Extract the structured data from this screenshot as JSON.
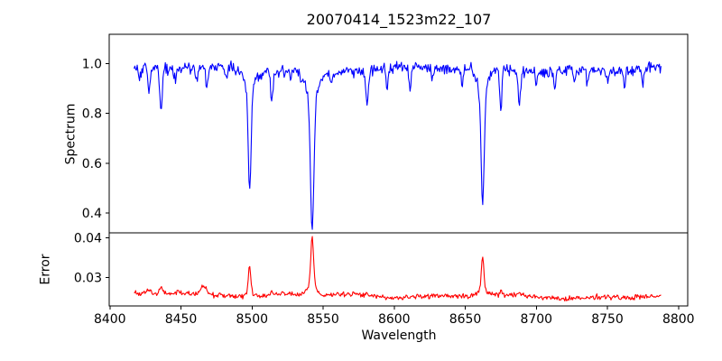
{
  "figure": {
    "title": "20070414_1523m22_107"
  },
  "chart_data": {
    "type": "line",
    "title": "20070414_1523m22_107",
    "xlabel": "Wavelength",
    "grid": false,
    "legend": "none",
    "xlim": [
      8399.5,
      8806.5
    ],
    "x_ticks": [
      {
        "v": 8400,
        "label": "8400"
      },
      {
        "v": 8450,
        "label": "8450"
      },
      {
        "v": 8500,
        "label": "8500"
      },
      {
        "v": 8550,
        "label": "8550"
      },
      {
        "v": 8600,
        "label": "8600"
      },
      {
        "v": 8650,
        "label": "8650"
      },
      {
        "v": 8700,
        "label": "8700"
      },
      {
        "v": 8750,
        "label": "8750"
      },
      {
        "v": 8800,
        "label": "8800"
      }
    ],
    "x_data_range": [
      8417,
      8788
    ],
    "x_step": 0.55,
    "seed": 1337,
    "subplots": [
      {
        "name": "spectrum",
        "ylabel": "Spectrum",
        "color": "#0000ff",
        "ylim": [
          0.32,
          1.118
        ],
        "y_ticks": [
          {
            "v": 1.0,
            "label": "1.0"
          },
          {
            "v": 0.8,
            "label": "0.8"
          },
          {
            "v": 0.6,
            "label": "0.6"
          },
          {
            "v": 0.4,
            "label": "0.4"
          }
        ],
        "continuum": {
          "base": 0.978,
          "waves": [
            [
              0.009,
              185,
              0.6
            ],
            [
              0.005,
              63,
              2.1
            ]
          ]
        },
        "noise_sigma": 0.0115,
        "absorption_lines": [
          {
            "center": 8421.0,
            "depth": 0.05,
            "sigma": 0.7
          },
          {
            "center": 8427.5,
            "depth": 0.1,
            "sigma": 0.8
          },
          {
            "center": 8436.0,
            "depth": 0.17,
            "sigma": 0.9
          },
          {
            "center": 8446.0,
            "depth": 0.05,
            "sigma": 0.7
          },
          {
            "center": 8461.0,
            "depth": 0.06,
            "sigma": 0.8
          },
          {
            "center": 8468.0,
            "depth": 0.08,
            "sigma": 0.8
          },
          {
            "center": 8482.0,
            "depth": 0.04,
            "sigma": 0.7
          },
          {
            "center": 8498.3,
            "depth": 0.4,
            "sigma": 1.0,
            "wing_depth": 0.08,
            "wing_sigma": 3.5
          },
          {
            "center": 8514.0,
            "depth": 0.12,
            "sigma": 0.8
          },
          {
            "center": 8527.0,
            "depth": 0.04,
            "sigma": 0.7
          },
          {
            "center": 8542.3,
            "depth": 0.54,
            "sigma": 1.2,
            "wing_depth": 0.1,
            "wing_sigma": 4.5
          },
          {
            "center": 8556.0,
            "depth": 0.05,
            "sigma": 0.7
          },
          {
            "center": 8581.0,
            "depth": 0.14,
            "sigma": 0.9
          },
          {
            "center": 8595.0,
            "depth": 0.09,
            "sigma": 0.8
          },
          {
            "center": 8611.0,
            "depth": 0.09,
            "sigma": 0.8
          },
          {
            "center": 8627.0,
            "depth": 0.05,
            "sigma": 0.7
          },
          {
            "center": 8648.0,
            "depth": 0.07,
            "sigma": 0.8
          },
          {
            "center": 8662.2,
            "depth": 0.46,
            "sigma": 1.1,
            "wing_depth": 0.09,
            "wing_sigma": 4.0
          },
          {
            "center": 8675.0,
            "depth": 0.16,
            "sigma": 0.8
          },
          {
            "center": 8688.0,
            "depth": 0.13,
            "sigma": 0.9
          },
          {
            "center": 8700.0,
            "depth": 0.05,
            "sigma": 0.7
          },
          {
            "center": 8713.0,
            "depth": 0.07,
            "sigma": 0.7
          },
          {
            "center": 8727.0,
            "depth": 0.05,
            "sigma": 0.7
          },
          {
            "center": 8736.0,
            "depth": 0.06,
            "sigma": 0.7
          },
          {
            "center": 8750.0,
            "depth": 0.04,
            "sigma": 0.7
          },
          {
            "center": 8762.0,
            "depth": 0.07,
            "sigma": 0.7
          },
          {
            "center": 8775.0,
            "depth": 0.06,
            "sigma": 0.7
          }
        ]
      },
      {
        "name": "error",
        "ylabel": "Error",
        "color": "#ff0000",
        "ylim": [
          0.0228,
          0.0412
        ],
        "y_ticks": [
          {
            "v": 0.04,
            "label": "0.04"
          },
          {
            "v": 0.03,
            "label": "0.03"
          }
        ],
        "baseline": {
          "start": 0.0258,
          "slope_per_angstrom": -2.2e-06,
          "waves": [
            [
              0.0003,
              120,
              1.0
            ],
            [
              0.0002,
              55,
              2.5
            ]
          ]
        },
        "noise_sigma": 0.00032,
        "peaks": [
          {
            "center": 8427.0,
            "height": 0.001,
            "sigma": 1.5
          },
          {
            "center": 8436.0,
            "height": 0.0013,
            "sigma": 1.5
          },
          {
            "center": 8448.0,
            "height": 0.0008,
            "sigma": 1.5
          },
          {
            "center": 8466.0,
            "height": 0.002,
            "sigma": 2.0
          },
          {
            "center": 8498.3,
            "height": 0.0066,
            "sigma": 0.8,
            "wing_height": 0.0012,
            "wing_sigma": 2.5
          },
          {
            "center": 8514.0,
            "height": 0.0006,
            "sigma": 1.0
          },
          {
            "center": 8542.3,
            "height": 0.0125,
            "sigma": 1.0,
            "wing_height": 0.0022,
            "wing_sigma": 3.0
          },
          {
            "center": 8581.0,
            "height": 0.0007,
            "sigma": 1.0
          },
          {
            "center": 8662.2,
            "height": 0.0086,
            "sigma": 0.9,
            "wing_height": 0.0015,
            "wing_sigma": 3.0
          },
          {
            "center": 8675.0,
            "height": 0.0008,
            "sigma": 1.0
          },
          {
            "center": 8688.0,
            "height": 0.0007,
            "sigma": 1.0
          }
        ]
      }
    ]
  }
}
